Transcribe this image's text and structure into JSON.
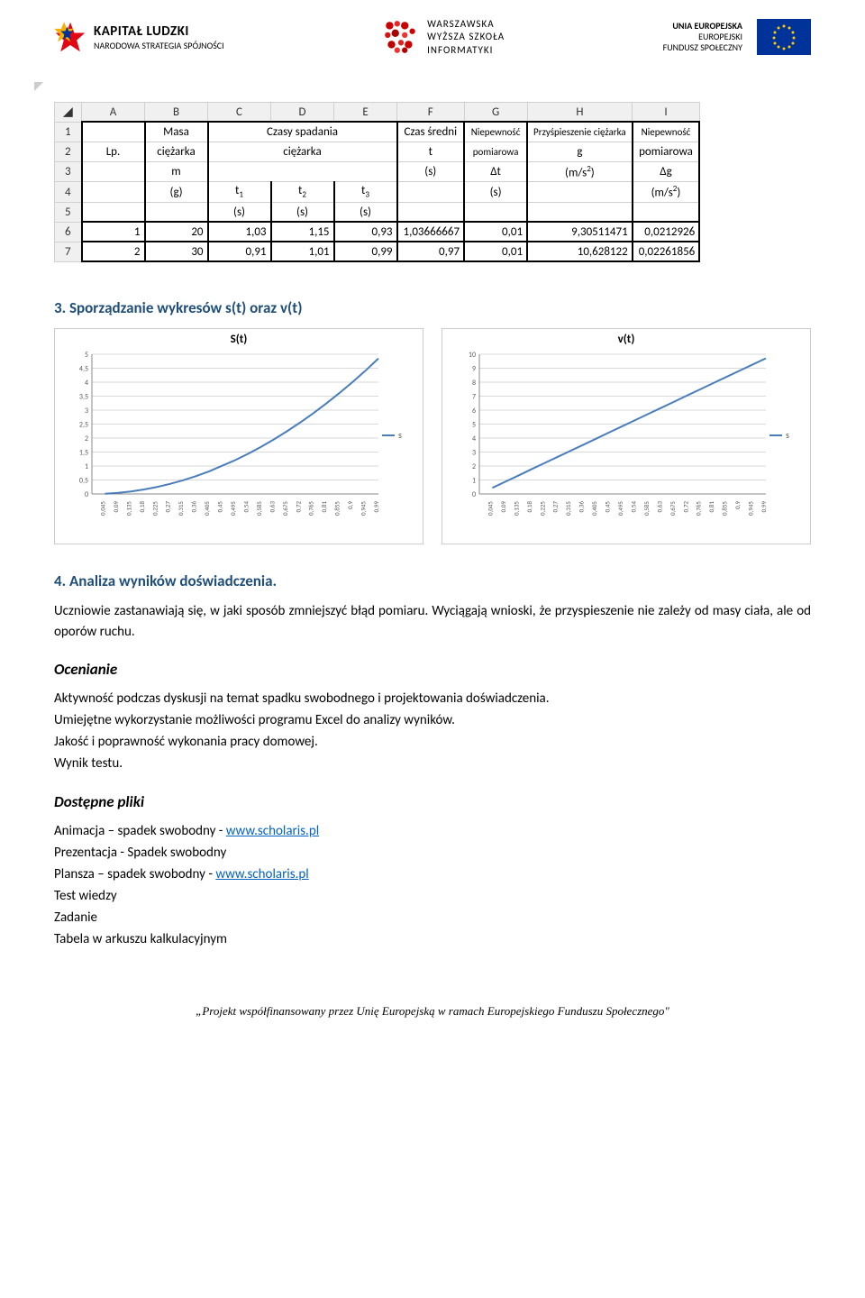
{
  "logos": {
    "kl_bold": "KAPITAŁ LUDZKI",
    "kl_sub": "NARODOWA STRATEGIA SPÓJNOŚCI",
    "wwsi_l1": "Warszawska",
    "wwsi_l2": "Wyższa Szkoła",
    "wwsi_l3": "Informatyki",
    "eu_l1": "UNIA EUROPEJSKA",
    "eu_l2": "EUROPEJSKI",
    "eu_l3": "FUNDUSZ SPOŁECZNY"
  },
  "excel": {
    "cols": [
      "A",
      "B",
      "C",
      "D",
      "E",
      "F",
      "G",
      "H",
      "I"
    ],
    "h1": {
      "B": "Masa",
      "CDE": "Czasy spadania",
      "F": "Czas średni",
      "G": "Niepewność",
      "H": "Przyśpieszenie ciężarka",
      "I": "Niepewność"
    },
    "h2": {
      "A": "Lp.",
      "B": "ciężarka",
      "CDE": "ciężarka",
      "F": "t",
      "G": "pomiarowa",
      "H": "g",
      "I": "pomiarowa"
    },
    "h3": {
      "B": "m",
      "F": "(s)",
      "G": "Δt",
      "H": "(m/s²)",
      "I": "Δg"
    },
    "h4": {
      "B": "(g)",
      "C": "t₁",
      "D": "t₂",
      "E": "t₃",
      "G": "(s)",
      "I": "(m/s²)"
    },
    "h5": {
      "C": "(s)",
      "D": "(s)",
      "E": "(s)"
    },
    "r6": {
      "A": "1",
      "B": "20",
      "C": "1,03",
      "D": "1,15",
      "E": "0,93",
      "F": "1,03666667",
      "G": "0,01",
      "H": "9,30511471",
      "I": "0,0212926"
    },
    "r7": {
      "A": "2",
      "B": "30",
      "C": "0,91",
      "D": "1,01",
      "E": "0,99",
      "F": "0,97",
      "G": "0,01",
      "H": "10,628122",
      "I": "0,02261856"
    }
  },
  "section3": "3.    Sporządzanie wykresów s(t) oraz v(t)",
  "charts": {
    "s": {
      "title": "S(t)",
      "legend": "s",
      "yticks": [
        0,
        0.5,
        1,
        1.5,
        2,
        2.5,
        3,
        3.5,
        4,
        4.5,
        5
      ],
      "xticks": [
        "0,045",
        "0,09",
        "0,135",
        "0,18",
        "0,225",
        "0,27",
        "0,315",
        "0,36",
        "0,405",
        "0,45",
        "0,495",
        "0,54",
        "0,585",
        "0,63",
        "0,675",
        "0,72",
        "0,765",
        "0,81",
        "0,855",
        "0,9",
        "0,945",
        "0,99"
      ],
      "points": [
        [
          0.045,
          0.01
        ],
        [
          0.09,
          0.04
        ],
        [
          0.135,
          0.09
        ],
        [
          0.18,
          0.16
        ],
        [
          0.225,
          0.25
        ],
        [
          0.27,
          0.36
        ],
        [
          0.315,
          0.49
        ],
        [
          0.36,
          0.64
        ],
        [
          0.405,
          0.81
        ],
        [
          0.45,
          1.01
        ],
        [
          0.495,
          1.21
        ],
        [
          0.54,
          1.44
        ],
        [
          0.585,
          1.69
        ],
        [
          0.63,
          1.96
        ],
        [
          0.675,
          2.25
        ],
        [
          0.72,
          2.56
        ],
        [
          0.765,
          2.89
        ],
        [
          0.81,
          3.24
        ],
        [
          0.855,
          3.61
        ],
        [
          0.9,
          4.0
        ],
        [
          0.945,
          4.41
        ],
        [
          0.99,
          4.85
        ]
      ],
      "ymax": 5,
      "line_color": "#4a7ebb",
      "grid_color": "#d9d9d9"
    },
    "v": {
      "title": "v(t)",
      "legend": "s",
      "yticks": [
        0,
        1,
        2,
        3,
        4,
        5,
        6,
        7,
        8,
        9,
        10
      ],
      "xticks": [
        "0,045",
        "0,09",
        "0,135",
        "0,18",
        "0,225",
        "0,27",
        "0,315",
        "0,36",
        "0,405",
        "0,45",
        "0,495",
        "0,54",
        "0,585",
        "0,63",
        "0,675",
        "0,72",
        "0,765",
        "0,81",
        "0,855",
        "0,9",
        "0,945",
        "0,99"
      ],
      "points": [
        [
          0.045,
          0.44
        ],
        [
          0.09,
          0.88
        ],
        [
          0.135,
          1.32
        ],
        [
          0.18,
          1.77
        ],
        [
          0.225,
          2.21
        ],
        [
          0.27,
          2.65
        ],
        [
          0.315,
          3.09
        ],
        [
          0.36,
          3.53
        ],
        [
          0.405,
          3.97
        ],
        [
          0.45,
          4.42
        ],
        [
          0.495,
          4.86
        ],
        [
          0.54,
          5.3
        ],
        [
          0.585,
          5.74
        ],
        [
          0.63,
          6.18
        ],
        [
          0.675,
          6.62
        ],
        [
          0.72,
          7.07
        ],
        [
          0.765,
          7.51
        ],
        [
          0.81,
          7.95
        ],
        [
          0.855,
          8.39
        ],
        [
          0.9,
          8.83
        ],
        [
          0.945,
          9.27
        ],
        [
          0.99,
          9.71
        ]
      ],
      "ymax": 10,
      "line_color": "#4a7ebb",
      "grid_color": "#d9d9d9"
    }
  },
  "section4": "4.    Analiza wyników doświadczenia.",
  "para1": "Uczniowie zastanawiają się, w jaki sposób zmniejszyć błąd pomiaru. Wyciągają wnioski, że przyspieszenie nie zależy od masy ciała, ale od oporów ruchu.",
  "ocenianie_h": "Ocenianie",
  "ocenianie_l1": "Aktywność podczas dyskusji na temat spadku swobodnego i projektowania doświadczenia.",
  "ocenianie_l2": "Umiejętne wykorzystanie możliwości programu Excel do analizy wyników.",
  "ocenianie_l3": "Jakość i poprawność wykonania pracy domowej.",
  "ocenianie_l4": "Wynik testu.",
  "pliki_h": "Dostępne pliki",
  "pliki": {
    "l1a": "Animacja – spadek swobodny - ",
    "l1b": "www.scholaris.pl",
    "l2": "Prezentacja - Spadek swobodny",
    "l3a": "Plansza – spadek swobodny - ",
    "l3b": "www.scholaris.pl",
    "l4": "Test wiedzy",
    "l5": "Zadanie",
    "l6": "Tabela w arkuszu kalkulacyjnym"
  },
  "footer": "„Projekt współfinansowany przez Unię Europejską w ramach Europejskiego Funduszu Społecznego\""
}
